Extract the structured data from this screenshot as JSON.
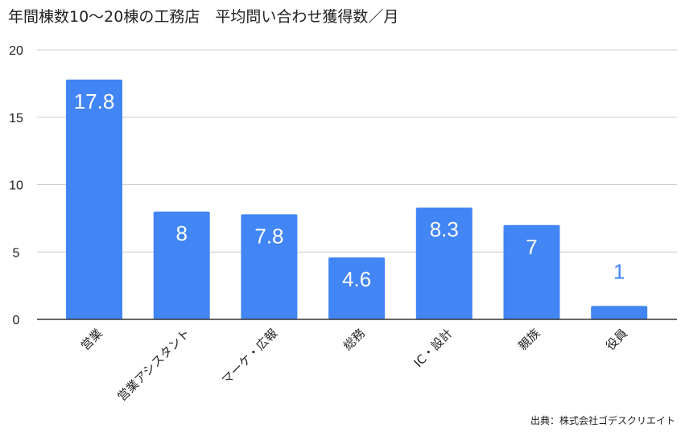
{
  "chart_data": {
    "type": "bar",
    "title": "年間棟数10〜20棟の工務店　平均問い合わせ獲得数／月",
    "categories": [
      "営業",
      "営業アシスタント",
      "マーケ・広報",
      "総務",
      "IC・設計",
      "親族",
      "役員"
    ],
    "values": [
      17.8,
      8,
      7.8,
      4.6,
      8.3,
      7,
      1
    ],
    "data_labels": [
      "17.8",
      "8",
      "7.8",
      "4.6",
      "8.3",
      "7",
      "1"
    ],
    "ylim": [
      0,
      20
    ],
    "yticks": [
      "0",
      "5",
      "10",
      "15",
      "20"
    ],
    "grid": true,
    "legend": "none",
    "xlabel": "",
    "ylabel": "",
    "source": "出典：株式会社ゴデスクリエイト",
    "colors": {
      "bar": "#4285f4",
      "label_inside": "#ffffff",
      "label_outside": "#4285f4",
      "grid": "#cccccc",
      "axis": "#333333"
    }
  }
}
